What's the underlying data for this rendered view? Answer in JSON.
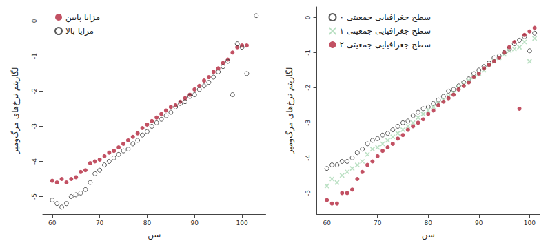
{
  "chart_data": [
    {
      "type": "scatter",
      "x_label": "سن",
      "y_label": "لگاریتم نرخ‌های مرگ‌ومیر",
      "xlim": [
        58,
        105
      ],
      "xticks": [
        60,
        70,
        80,
        90,
        100
      ],
      "ylim": [
        -5.5,
        0.4
      ],
      "yticks": [
        -5,
        -4,
        -3,
        -2,
        -1,
        0
      ],
      "grid": false,
      "legend": "upper left",
      "series": [
        {
          "name": "مزایا پایین",
          "color": "#b3263c",
          "marker": "filled",
          "x": [
            60,
            61,
            62,
            63,
            64,
            65,
            66,
            67,
            68,
            69,
            70,
            71,
            72,
            73,
            74,
            75,
            76,
            77,
            78,
            79,
            80,
            81,
            82,
            83,
            84,
            85,
            86,
            87,
            88,
            89,
            90,
            91,
            92,
            93,
            94,
            95,
            96,
            97,
            98,
            99,
            100,
            101
          ],
          "values": [
            -4.55,
            -4.6,
            -4.5,
            -4.6,
            -4.5,
            -4.45,
            -4.3,
            -4.25,
            -4.05,
            -4.0,
            -3.95,
            -3.85,
            -3.75,
            -3.7,
            -3.6,
            -3.5,
            -3.4,
            -3.3,
            -3.2,
            -3.05,
            -2.95,
            -2.85,
            -2.75,
            -2.65,
            -2.55,
            -2.45,
            -2.4,
            -2.3,
            -2.2,
            -2.1,
            -1.95,
            -1.85,
            -1.7,
            -1.6,
            -1.45,
            -1.35,
            -1.2,
            -1.1,
            -0.9,
            -0.75,
            -0.7,
            -0.7
          ]
        },
        {
          "name": "مزایا بالا",
          "color": "#333333",
          "marker": "open",
          "x": [
            60,
            61,
            62,
            63,
            64,
            65,
            66,
            67,
            68,
            69,
            70,
            71,
            72,
            73,
            74,
            75,
            76,
            77,
            78,
            79,
            80,
            81,
            82,
            83,
            84,
            85,
            86,
            87,
            88,
            89,
            90,
            91,
            92,
            93,
            94,
            95,
            96,
            97,
            98,
            99,
            100,
            101,
            103
          ],
          "values": [
            -5.1,
            -5.2,
            -5.3,
            -5.2,
            -5.0,
            -4.95,
            -4.9,
            -4.8,
            -4.6,
            -4.35,
            -4.25,
            -4.1,
            -4.0,
            -3.9,
            -3.8,
            -3.7,
            -3.65,
            -3.5,
            -3.4,
            -3.25,
            -3.15,
            -3.0,
            -2.9,
            -2.8,
            -2.7,
            -2.6,
            -2.45,
            -2.35,
            -2.3,
            -2.15,
            -2.1,
            -1.95,
            -1.85,
            -1.75,
            -1.6,
            -1.45,
            -1.3,
            -1.15,
            -2.1,
            -0.65,
            -0.75,
            -1.5,
            0.15
          ]
        }
      ]
    },
    {
      "type": "scatter",
      "x_label": "سن",
      "y_label": "لگاریتم نرخ‌های مرگ‌ومیر",
      "xlim": [
        58,
        102
      ],
      "xticks": [
        60,
        70,
        80,
        90,
        100
      ],
      "ylim": [
        -5.6,
        0.3
      ],
      "yticks": [
        -5,
        -4,
        -3,
        -2,
        -1,
        0
      ],
      "grid": false,
      "legend": "upper left",
      "series": [
        {
          "name": "سطح جغرافیایی جمعیتی ۰",
          "color": "#333333",
          "marker": "open",
          "x": [
            60,
            61,
            62,
            63,
            64,
            65,
            66,
            67,
            68,
            69,
            70,
            71,
            72,
            73,
            74,
            75,
            76,
            77,
            78,
            79,
            80,
            81,
            82,
            83,
            84,
            85,
            86,
            87,
            88,
            89,
            90,
            91,
            92,
            93,
            94,
            95,
            96,
            97,
            98,
            99,
            100,
            101
          ],
          "values": [
            -4.3,
            -4.2,
            -4.2,
            -4.1,
            -4.1,
            -4.0,
            -3.85,
            -3.75,
            -3.6,
            -3.5,
            -3.45,
            -3.35,
            -3.3,
            -3.2,
            -3.1,
            -3.0,
            -2.95,
            -2.8,
            -2.7,
            -2.6,
            -2.55,
            -2.45,
            -2.35,
            -2.25,
            -2.1,
            -2.05,
            -1.95,
            -1.85,
            -1.75,
            -1.6,
            -1.5,
            -1.4,
            -1.3,
            -1.15,
            -1.1,
            -1.0,
            -0.9,
            -0.75,
            -0.65,
            -0.55,
            -0.95,
            -0.45
          ]
        },
        {
          "name": "سطح جغرافیایی جمعیتی ۱",
          "color": "#a9d8b4",
          "marker": "cross",
          "x": [
            60,
            61,
            62,
            63,
            64,
            65,
            66,
            67,
            68,
            69,
            70,
            71,
            72,
            73,
            74,
            75,
            76,
            77,
            78,
            79,
            80,
            81,
            82,
            83,
            84,
            85,
            86,
            87,
            88,
            89,
            90,
            91,
            92,
            93,
            94,
            95,
            96,
            97,
            98,
            99,
            100,
            101
          ],
          "values": [
            -4.8,
            -4.6,
            -4.7,
            -4.5,
            -4.4,
            -4.3,
            -4.2,
            -4.1,
            -3.9,
            -3.75,
            -3.7,
            -3.6,
            -3.5,
            -3.4,
            -3.3,
            -3.2,
            -3.1,
            -3.0,
            -2.85,
            -2.75,
            -2.65,
            -2.55,
            -2.45,
            -2.35,
            -2.25,
            -2.15,
            -2.0,
            -1.9,
            -1.8,
            -1.7,
            -1.6,
            -1.5,
            -1.35,
            -1.25,
            -1.15,
            -1.05,
            -0.95,
            -0.9,
            -0.85,
            -0.7,
            -1.25,
            -0.6
          ]
        },
        {
          "name": "سطح جغرافیایی جمعیتی ۲",
          "color": "#b3263c",
          "marker": "filled",
          "x": [
            60,
            61,
            62,
            63,
            64,
            65,
            66,
            67,
            68,
            69,
            70,
            71,
            72,
            73,
            74,
            75,
            76,
            77,
            78,
            79,
            80,
            81,
            82,
            83,
            84,
            85,
            86,
            87,
            88,
            89,
            90,
            91,
            92,
            93,
            94,
            95,
            96,
            97,
            98,
            99,
            100,
            101
          ],
          "values": [
            -5.2,
            -5.3,
            -5.3,
            -5.0,
            -5.0,
            -4.9,
            -4.6,
            -4.4,
            -4.2,
            -4.1,
            -3.95,
            -3.8,
            -3.7,
            -3.6,
            -3.45,
            -3.35,
            -3.2,
            -3.1,
            -3.0,
            -2.9,
            -2.75,
            -2.65,
            -2.5,
            -2.4,
            -2.3,
            -2.2,
            -2.05,
            -1.95,
            -1.85,
            -1.7,
            -1.6,
            -1.45,
            -1.35,
            -1.25,
            -1.15,
            -1.0,
            -0.85,
            -0.7,
            -2.6,
            -0.5,
            -0.4,
            -0.3
          ]
        }
      ]
    }
  ]
}
